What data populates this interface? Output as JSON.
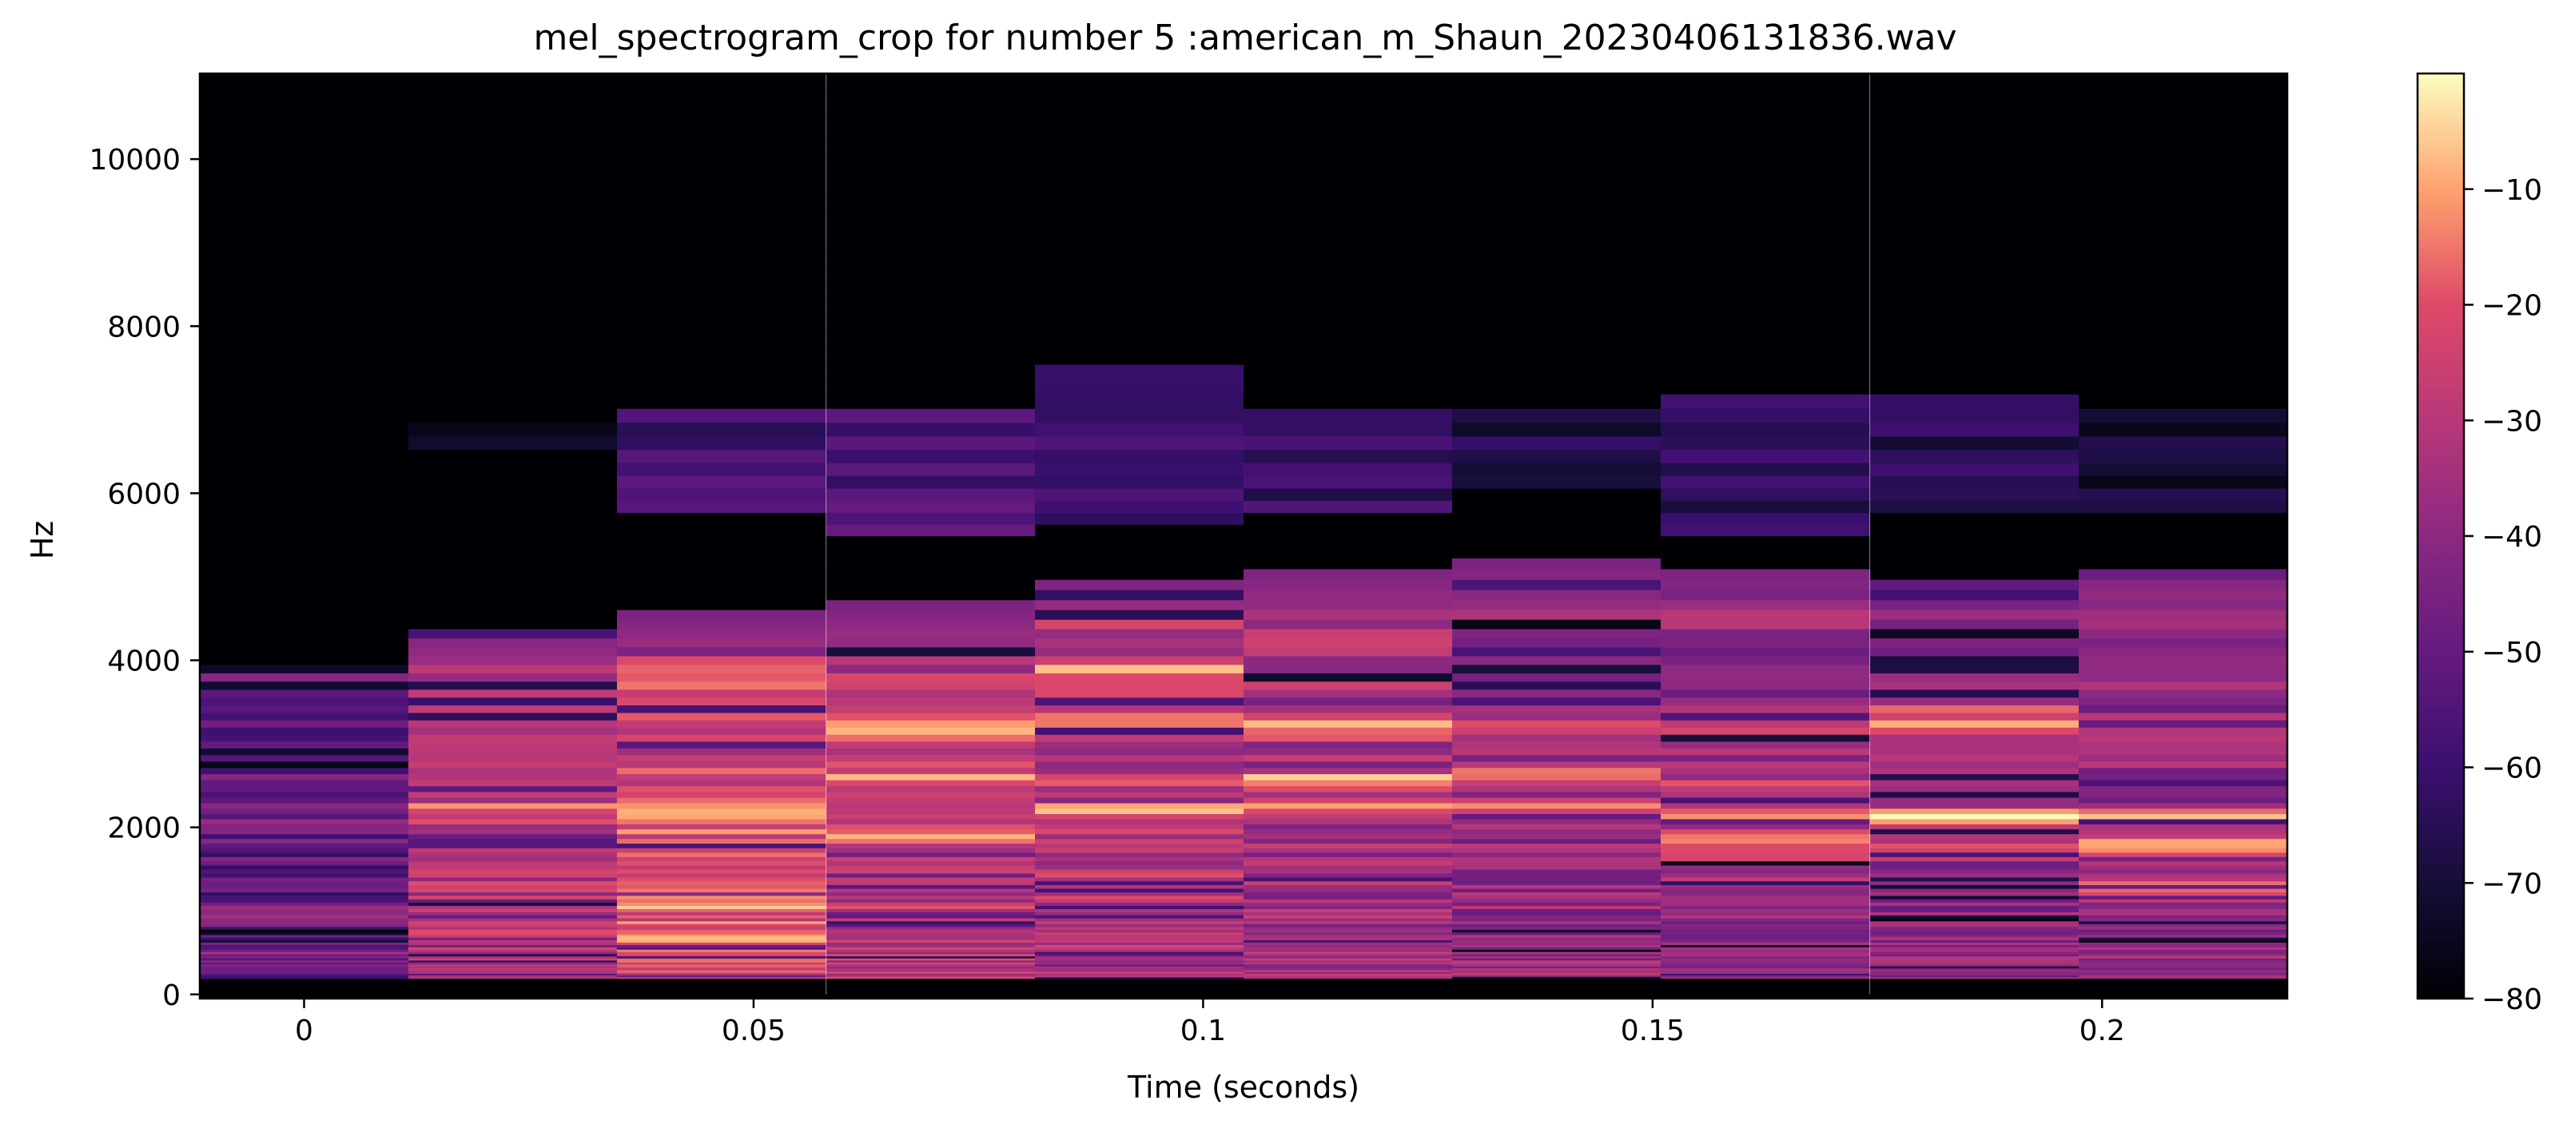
{
  "chart_data": {
    "type": "heatmap",
    "title": "mel_spectrogram_crop for number 5 :american_m_Shaun_20230406131836.wav",
    "xlabel": "Time (seconds)",
    "ylabel": "Hz",
    "xlim": [
      -0.0116,
      0.2206
    ],
    "ylim": [
      -50,
      11025
    ],
    "xticks": [
      0,
      0.05,
      0.1,
      0.15,
      0.2
    ],
    "xtick_labels": [
      "0",
      "0.05",
      "0.1",
      "0.15",
      "0.2"
    ],
    "yticks": [
      0,
      2000,
      4000,
      6000,
      8000,
      10000
    ],
    "ytick_labels": [
      "0",
      "2000",
      "4000",
      "6000",
      "8000",
      "10000"
    ],
    "colormap": "magma",
    "colorbar": {
      "range": [
        -80,
        0
      ],
      "ticks": [
        -80,
        -70,
        -60,
        -50,
        -40,
        -30,
        -20,
        -10
      ],
      "tick_labels": [
        "−80",
        "−70",
        "−60",
        "−50",
        "−40",
        "−30",
        "−20",
        "−10"
      ]
    },
    "time_frames": [
      0,
      0.0232,
      0.0464,
      0.0697,
      0.0929,
      0.1161,
      0.1393,
      0.1625,
      0.1858,
      0.209
    ],
    "profiles": [
      {
        "high_cutoff_hz": 4000,
        "upper_band": null,
        "peak_db": -40,
        "peak_hz": [
          2100,
          1000,
          500
        ],
        "base_db": -52
      },
      {
        "high_cutoff_hz": 4400,
        "upper_band": [
          6500,
          6850,
          -72
        ],
        "peak_db": -12,
        "peak_hz": [
          2200,
          1800,
          700
        ],
        "base_db": -30
      },
      {
        "high_cutoff_hz": 4600,
        "upper_band": [
          5700,
          7000,
          -58
        ],
        "peak_db": -3,
        "peak_hz": [
          2300,
          2050,
          1100,
          700
        ],
        "base_db": -25
      },
      {
        "high_cutoff_hz": 4700,
        "upper_band": [
          5500,
          7000,
          -56
        ],
        "peak_db": -8,
        "peak_hz": [
          2600,
          2450,
          3200,
          1900
        ],
        "base_db": -30
      },
      {
        "high_cutoff_hz": 5000,
        "upper_band": [
          5600,
          7600,
          -62
        ],
        "peak_db": -4,
        "peak_hz": [
          2500,
          2250,
          3300,
          3900
        ],
        "base_db": -30
      },
      {
        "high_cutoff_hz": 5100,
        "upper_band": [
          5800,
          7100,
          -60
        ],
        "peak_db": -6,
        "peak_hz": [
          2550,
          2200,
          3200
        ],
        "base_db": -35
      },
      {
        "high_cutoff_hz": 5200,
        "upper_band": [
          6000,
          7100,
          -68
        ],
        "peak_db": -4,
        "peak_hz": [
          2250,
          3300,
          2600
        ],
        "base_db": -38
      },
      {
        "high_cutoff_hz": 5100,
        "upper_band": [
          5500,
          7200,
          -62
        ],
        "peak_db": -3,
        "peak_hz": [
          2150,
          2550,
          1800,
          3300
        ],
        "base_db": -38
      },
      {
        "high_cutoff_hz": 5000,
        "upper_band": [
          5700,
          7200,
          -64
        ],
        "peak_db": -4,
        "peak_hz": [
          2150,
          1800,
          3300
        ],
        "base_db": -40
      },
      {
        "high_cutoff_hz": 5100,
        "upper_band": [
          5800,
          7000,
          -70
        ],
        "peak_db": -10,
        "peak_hz": [
          2150,
          1800,
          1300
        ],
        "base_db": -38
      }
    ]
  }
}
